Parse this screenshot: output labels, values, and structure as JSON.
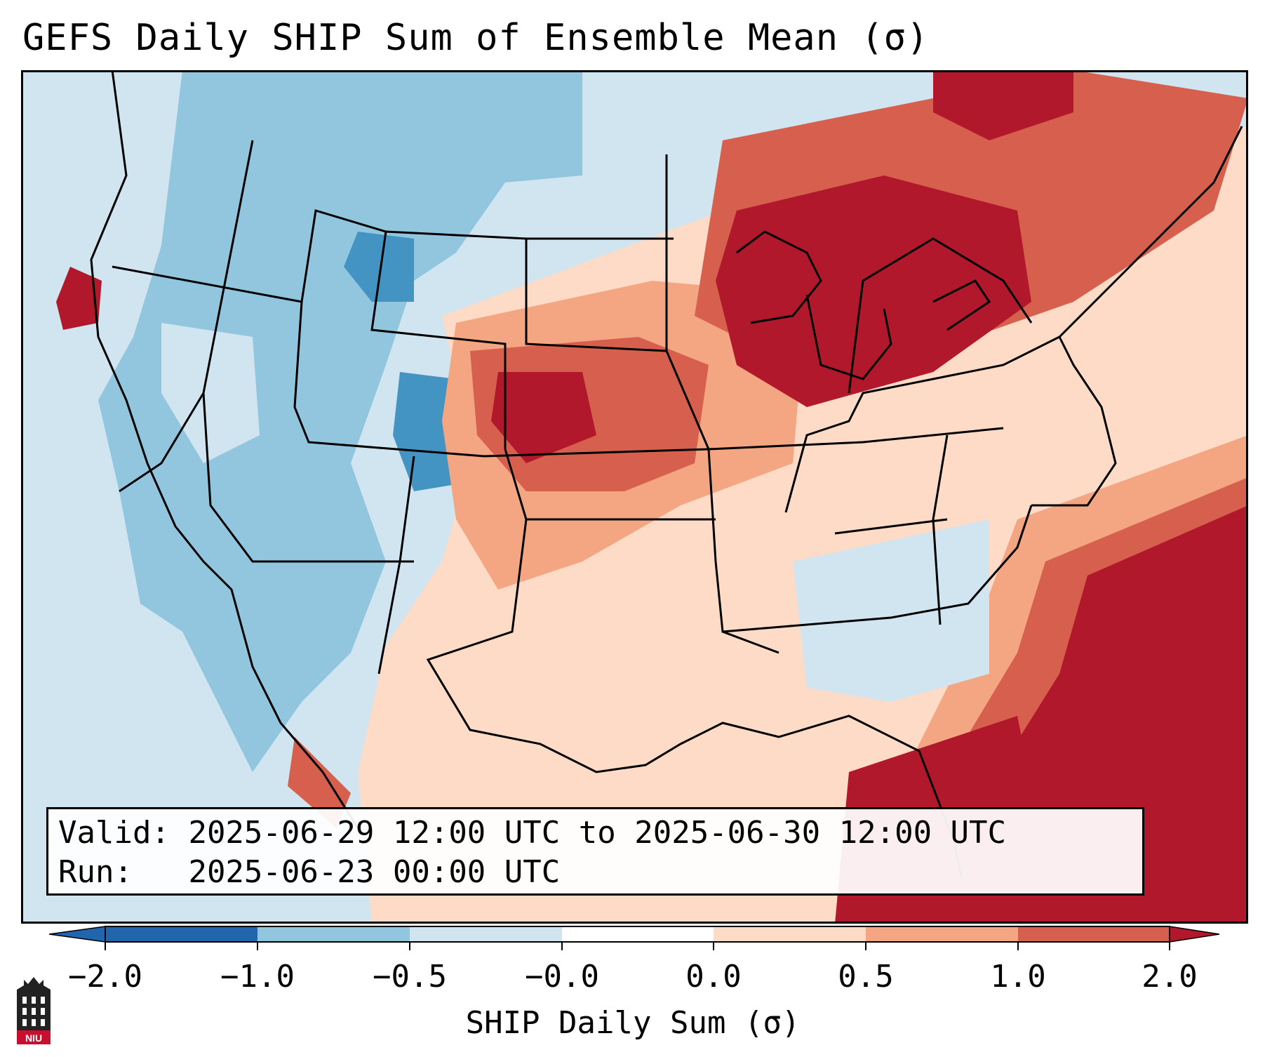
{
  "title": "GEFS Daily SHIP Sum of Ensemble Mean (σ)",
  "info": {
    "valid_label": "Valid:",
    "valid_value": "2025-06-29 12:00 UTC to 2025-06-30 12:00 UTC",
    "run_label": "Run:",
    "run_value": "2025-06-23 00:00 UTC"
  },
  "colorbar": {
    "label": "SHIP Daily Sum (σ)",
    "ticks": [
      "−2.0",
      "−1.0",
      "−0.5",
      "−0.0",
      "0.0",
      "0.5",
      "1.0",
      "2.0"
    ],
    "colors": [
      "#2166ac",
      "#4393c3",
      "#92c5de",
      "#d1e5f0",
      "#ffffff",
      "#fddbc7",
      "#f4a582",
      "#d6604d",
      "#b2182b"
    ]
  },
  "logo": {
    "text": "NIU",
    "color": "#c8102e"
  }
}
